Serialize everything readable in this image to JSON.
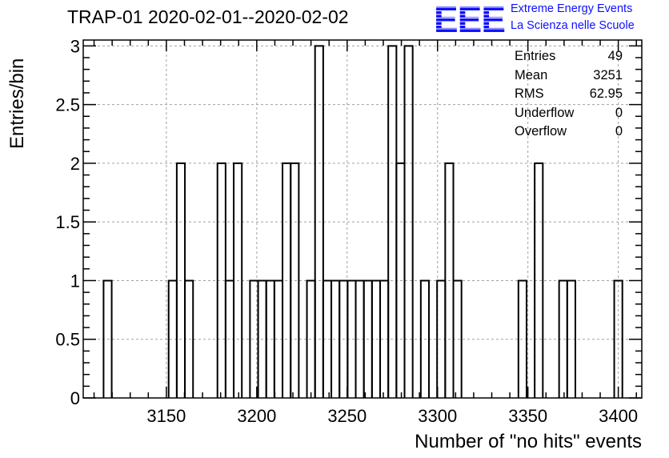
{
  "header": {
    "title": "TRAP-01 2020-02-01--2020-02-02"
  },
  "logo": {
    "mark_text": "EEE",
    "line1": "Extreme Energy Events",
    "line2": "La Scienza nelle Scuole",
    "color": "#1010ff"
  },
  "stats_box": {
    "rows": [
      {
        "label": "Entries",
        "value": "49"
      },
      {
        "label": "Mean",
        "value": "3251"
      },
      {
        "label": "RMS",
        "value": "62.95"
      },
      {
        "label": "Underflow",
        "value": "0"
      },
      {
        "label": "Overflow",
        "value": "0"
      }
    ]
  },
  "chart_data": {
    "type": "histogram",
    "title": "TRAP-01 2020-02-01--2020-02-02",
    "xlabel": "Number of \"no hits\" events",
    "ylabel": "Entries/bin",
    "xlim": [
      3104,
      3413
    ],
    "ylim": [
      0,
      3.05
    ],
    "bin_width": 4.5,
    "grid": true,
    "x_ticks": [
      3150,
      3200,
      3250,
      3300,
      3350,
      3400
    ],
    "x_tick_labels": [
      "3150",
      "3200",
      "3250",
      "3300",
      "3350",
      "3400"
    ],
    "y_ticks": [
      0,
      0.5,
      1,
      1.5,
      2,
      2.5,
      3
    ],
    "y_tick_labels": [
      "0",
      "0.5",
      "1",
      "1.5",
      "2",
      "2.5",
      "3"
    ],
    "bins": [
      {
        "x": 3117.5,
        "count": 1
      },
      {
        "x": 3153.5,
        "count": 1
      },
      {
        "x": 3158.0,
        "count": 2
      },
      {
        "x": 3162.5,
        "count": 1
      },
      {
        "x": 3180.5,
        "count": 2
      },
      {
        "x": 3185.0,
        "count": 1
      },
      {
        "x": 3189.5,
        "count": 2
      },
      {
        "x": 3198.5,
        "count": 1
      },
      {
        "x": 3203.0,
        "count": 1
      },
      {
        "x": 3207.5,
        "count": 1
      },
      {
        "x": 3212.0,
        "count": 1
      },
      {
        "x": 3216.5,
        "count": 2
      },
      {
        "x": 3221.0,
        "count": 2
      },
      {
        "x": 3230.0,
        "count": 1
      },
      {
        "x": 3234.5,
        "count": 3
      },
      {
        "x": 3239.0,
        "count": 1
      },
      {
        "x": 3243.5,
        "count": 1
      },
      {
        "x": 3248.0,
        "count": 1
      },
      {
        "x": 3252.5,
        "count": 1
      },
      {
        "x": 3257.0,
        "count": 1
      },
      {
        "x": 3261.5,
        "count": 1
      },
      {
        "x": 3266.0,
        "count": 1
      },
      {
        "x": 3270.5,
        "count": 1
      },
      {
        "x": 3275.0,
        "count": 3
      },
      {
        "x": 3279.5,
        "count": 2
      },
      {
        "x": 3284.0,
        "count": 3
      },
      {
        "x": 3293.0,
        "count": 1
      },
      {
        "x": 3302.0,
        "count": 1
      },
      {
        "x": 3306.5,
        "count": 2
      },
      {
        "x": 3311.0,
        "count": 1
      },
      {
        "x": 3347.0,
        "count": 1
      },
      {
        "x": 3356.0,
        "count": 2
      },
      {
        "x": 3369.5,
        "count": 1
      },
      {
        "x": 3374.0,
        "count": 1
      },
      {
        "x": 3400.0,
        "count": 1
      }
    ],
    "line_color": "#000000",
    "grid_color": "#a0a0a0"
  }
}
